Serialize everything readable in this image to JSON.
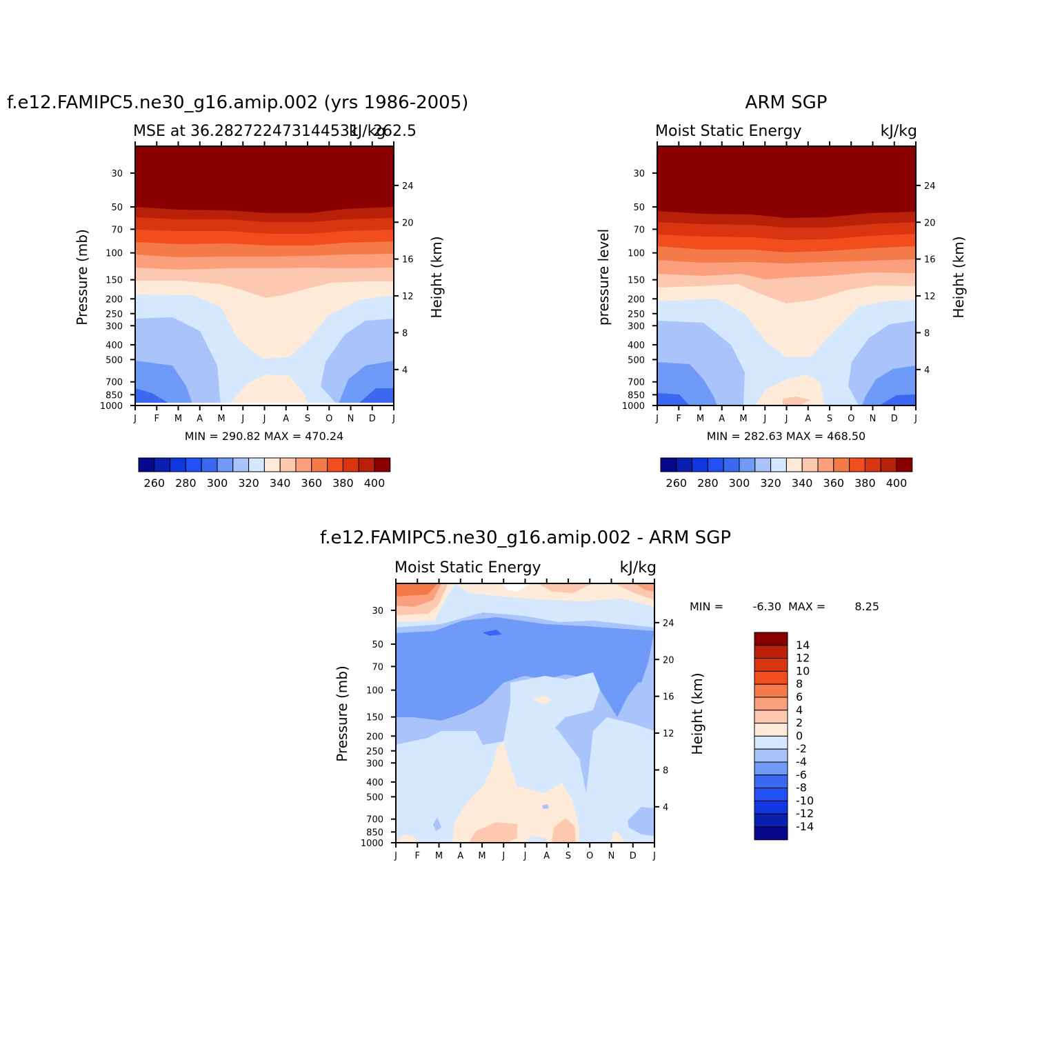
{
  "colors": {
    "levels14": [
      "#08088c",
      "#0a1fb0",
      "#1f3fe0",
      "#3a68f0",
      "#6f9af8",
      "#a8c4fa",
      "#d6e8fd",
      "#feead8",
      "#fdc8b0",
      "#fb9f7c",
      "#f5703f",
      "#e24010",
      "#b8200a",
      "#8a0000"
    ],
    "levels16": [
      "#08088c",
      "#0a1fb0",
      "#1137e0",
      "#2350f5",
      "#3a68f0",
      "#6f9af8",
      "#a8c4fa",
      "#d6e8fd",
      "#feead8",
      "#fdc8b0",
      "#fb9f7c",
      "#f57a4a",
      "#f24e1d",
      "#d83510",
      "#b8200a",
      "#8a0000"
    ]
  },
  "charts": [
    {
      "id": "model",
      "left_title": "f.e12.FAMIPC5.ne30_g16.amip.002 (yrs 1986-2005)",
      "sub_left": "MSE at 36.282722473144531",
      "sub_right": "kJ/kg",
      "sub_overlap": "262.5",
      "ylabel_left": "Pressure (mb)",
      "ylabel_right": "Height (km)",
      "min_max": "MIN = 290.82 MAX = 470.24",
      "colorbar_ticks": [
        "260",
        "280",
        "300",
        "320",
        "340",
        "360",
        "380",
        "400"
      ]
    },
    {
      "id": "obs",
      "center_title": "ARM SGP",
      "sub_left": "Moist Static Energy",
      "sub_right": "kJ/kg",
      "ylabel_left": "pressure level",
      "ylabel_right": "Height (km)",
      "min_max": "MIN = 282.63 MAX = 468.50",
      "colorbar_ticks": [
        "260",
        "280",
        "300",
        "320",
        "340",
        "360",
        "380",
        "400"
      ]
    },
    {
      "id": "diff",
      "center_title": "f.e12.FAMIPC5.ne30_g16.amip.002 - ARM SGP",
      "sub_left": "Moist Static Energy",
      "sub_right": "kJ/kg",
      "ylabel_left": "Pressure (mb)",
      "ylabel_right": "Height (km)",
      "min_label": "MIN =",
      "min_value": "-6.30",
      "max_label": "MAX =",
      "max_value": "8.25",
      "colorbar_ticks": [
        "14",
        "12",
        "10",
        "8",
        "6",
        "4",
        "2",
        "0",
        "-2",
        "-4",
        "-6",
        "-8",
        "-10",
        "-12",
        "-14"
      ]
    }
  ],
  "chart_data": [
    {
      "type": "heatmap",
      "title": "f.e12.FAMIPC5.ne30_g16.amip.002 (yrs 1986-2005)",
      "variable": "MSE",
      "units": "kJ/kg",
      "x_ticks": [
        "J",
        "F",
        "M",
        "A",
        "M",
        "J",
        "J",
        "A",
        "S",
        "O",
        "N",
        "D",
        "J"
      ],
      "y_ticks_pressure": [
        "30",
        "50",
        "70",
        "100",
        "150",
        "200",
        "250",
        "300",
        "400",
        "500",
        "700",
        "850",
        "1000"
      ],
      "y_ticks_height": [
        "24",
        "20",
        "16",
        "12",
        "8",
        "4"
      ],
      "ylim": [
        1000,
        20
      ],
      "levels": [
        260,
        270,
        280,
        290,
        300,
        310,
        320,
        330,
        340,
        350,
        360,
        370,
        380,
        390,
        400
      ],
      "min": 290.82,
      "max": 470.24
    },
    {
      "type": "heatmap",
      "title": "ARM SGP",
      "variable": "Moist Static Energy",
      "units": "kJ/kg",
      "x_ticks": [
        "J",
        "F",
        "M",
        "A",
        "M",
        "J",
        "J",
        "A",
        "S",
        "O",
        "N",
        "D",
        "J"
      ],
      "y_ticks_pressure": [
        "30",
        "50",
        "70",
        "100",
        "150",
        "200",
        "250",
        "300",
        "400",
        "500",
        "700",
        "850",
        "1000"
      ],
      "y_ticks_height": [
        "24",
        "20",
        "16",
        "12",
        "8",
        "4"
      ],
      "ylim": [
        1000,
        20
      ],
      "levels": [
        260,
        270,
        280,
        290,
        300,
        310,
        320,
        330,
        340,
        350,
        360,
        370,
        380,
        390,
        400
      ],
      "min": 282.63,
      "max": 468.5
    },
    {
      "type": "heatmap",
      "title": "f.e12.FAMIPC5.ne30_g16.amip.002 - ARM SGP",
      "variable": "Moist Static Energy",
      "units": "kJ/kg",
      "x_ticks": [
        "J",
        "F",
        "M",
        "A",
        "M",
        "J",
        "J",
        "A",
        "S",
        "O",
        "N",
        "D",
        "J"
      ],
      "y_ticks_pressure": [
        "30",
        "50",
        "70",
        "100",
        "150",
        "200",
        "250",
        "300",
        "400",
        "500",
        "700",
        "850",
        "1000"
      ],
      "y_ticks_height": [
        "24",
        "20",
        "16",
        "12",
        "8",
        "4"
      ],
      "ylim": [
        1000,
        20
      ],
      "levels": [
        -14,
        -12,
        -10,
        -8,
        -6,
        -4,
        -2,
        0,
        2,
        4,
        6,
        8,
        10,
        12,
        14
      ],
      "min": -6.3,
      "max": 8.25
    }
  ]
}
